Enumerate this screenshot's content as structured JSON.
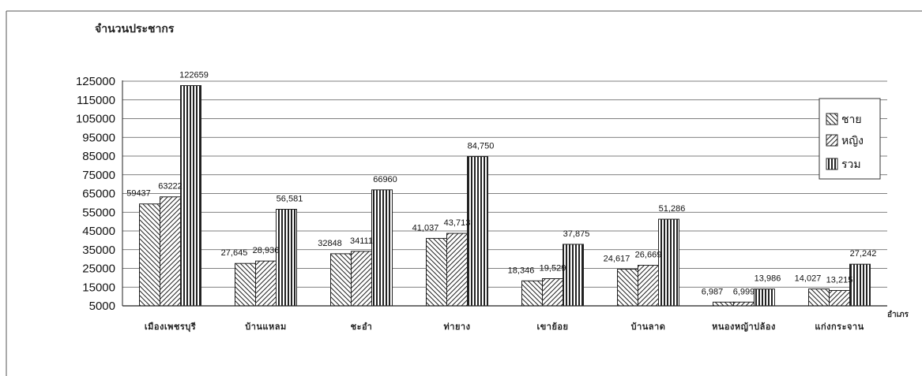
{
  "chart_data": {
    "type": "bar",
    "title": "",
    "ylabel": "จำนวนประชากร",
    "xlabel": "อำเภร",
    "ylim": [
      5000,
      125000
    ],
    "yticks": [
      5000,
      15000,
      25000,
      35000,
      45000,
      55000,
      65000,
      75000,
      85000,
      95000,
      105000,
      115000,
      125000
    ],
    "grid": true,
    "legend_position": "right",
    "categories": [
      "เมืองเพชรบุรี",
      "บ้านแหลม",
      "ชะอำ",
      "ท่ายาง",
      "เขาย้อย",
      "บ้านลาด",
      "หนองหญ้าปล้อง",
      "แก่งกระจาน"
    ],
    "series": [
      {
        "name": "ชาย",
        "pattern": "back-diagonal",
        "values": [
          59437,
          27645,
          32848,
          41037,
          18346,
          24617,
          6987,
          14027
        ],
        "labels": [
          "59437",
          "27,645",
          "32848",
          "41,037",
          "18,346",
          "24,617",
          "6,987",
          "14,027"
        ]
      },
      {
        "name": "หญิง",
        "pattern": "forward-diagonal",
        "values": [
          63222,
          28936,
          34111,
          43713,
          19529,
          26669,
          6999,
          13215
        ],
        "labels": [
          "63222",
          "28,936",
          "34111",
          "43,713",
          "19,529",
          "26,669",
          "6,999",
          "13,215"
        ]
      },
      {
        "name": "รวม",
        "pattern": "vertical",
        "values": [
          122659,
          56581,
          66960,
          84750,
          37875,
          51286,
          13986,
          27242
        ],
        "labels": [
          "122659",
          "56,581",
          "66960",
          "84,750",
          "37,875",
          "51,286",
          "13,986",
          "27,242"
        ]
      }
    ]
  }
}
